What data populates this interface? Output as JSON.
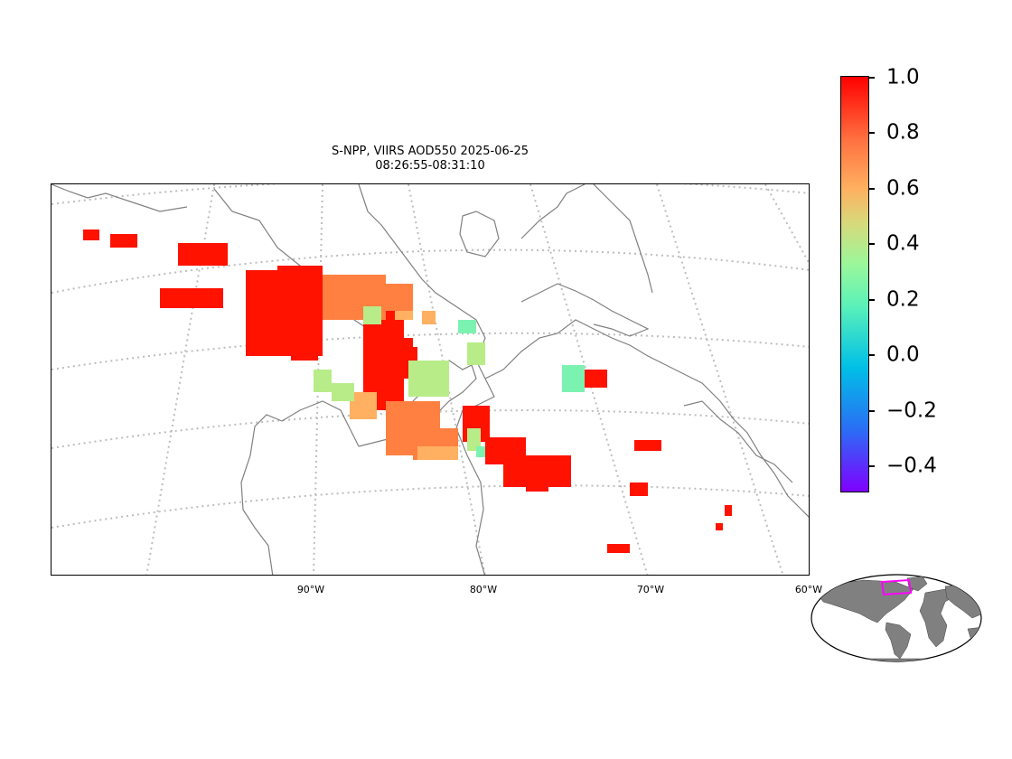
{
  "title": {
    "line1": "S-NPP, VIIRS AOD550 2025-06-25",
    "line2": "08:26:55-08:31:10"
  },
  "map": {
    "projection": "conic",
    "gridlines": "dotted",
    "coastline_color": "#808080",
    "longitude_labels": [
      "90°W",
      "80°W",
      "70°W",
      "60°W"
    ]
  },
  "colorbar": {
    "colormap": "rainbow",
    "min": -0.5,
    "max": 1.0,
    "tick_labels": [
      "1.0",
      "0.8",
      "0.6",
      "0.4",
      "0.2",
      "0.0",
      "−0.2",
      "−0.4"
    ]
  },
  "inset": {
    "land_color": "#808080",
    "highlight_color": "#ff00ff"
  }
}
